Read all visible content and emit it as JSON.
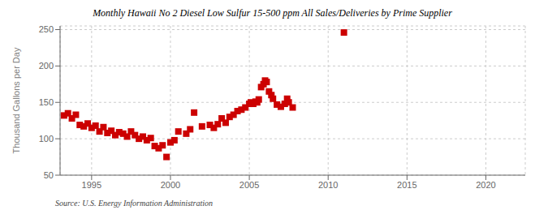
{
  "chart_data": {
    "type": "scatter",
    "title": "Monthly Hawaii No 2 Diesel Low Sulfur 15-500 ppm All Sales/Deliveries by Prime Supplier",
    "ylabel": "Thousand Gallons per Day",
    "annotations": [
      "Source: U.S. Energy Information Administration"
    ],
    "color": "#cc0000",
    "marker": "square",
    "grid": true,
    "xlim": [
      1993.0,
      2022.5
    ],
    "ylim": [
      50,
      255
    ],
    "xticks": [
      1995,
      2000,
      2005,
      2010,
      2015,
      2020
    ],
    "yticks": [
      50,
      100,
      150,
      200,
      250
    ],
    "x": [
      1993.25,
      1993.5,
      1993.75,
      1994.0,
      1994.25,
      1994.5,
      1994.75,
      1995.0,
      1995.25,
      1995.5,
      1995.75,
      1996.0,
      1996.25,
      1996.5,
      1996.75,
      1997.0,
      1997.25,
      1997.5,
      1997.75,
      1998.0,
      1998.25,
      1998.5,
      1998.75,
      1999.0,
      1999.25,
      1999.5,
      1999.75,
      2000.0,
      2000.25,
      2000.5,
      2001.0,
      2001.25,
      2001.5,
      2002.0,
      2002.5,
      2002.75,
      2003.0,
      2003.25,
      2003.5,
      2003.75,
      2004.0,
      2004.25,
      2004.5,
      2004.75,
      2005.0,
      2005.1,
      2005.25,
      2005.4,
      2005.5,
      2005.6,
      2005.75,
      2005.9,
      2006.0,
      2006.1,
      2006.25,
      2006.4,
      2006.5,
      2006.75,
      2007.0,
      2007.25,
      2007.4,
      2007.5,
      2007.75,
      2011.0
    ],
    "values": [
      132,
      135,
      128,
      133,
      119,
      117,
      121,
      115,
      118,
      110,
      116,
      108,
      111,
      105,
      109,
      107,
      103,
      110,
      105,
      100,
      103,
      98,
      101,
      90,
      87,
      91,
      75,
      95,
      98,
      110,
      107,
      113,
      136,
      117,
      119,
      115,
      120,
      128,
      122,
      130,
      133,
      138,
      140,
      143,
      148,
      150,
      148,
      151,
      150,
      154,
      171,
      175,
      180,
      178,
      165,
      160,
      155,
      147,
      144,
      148,
      155,
      150,
      143,
      246
    ]
  }
}
